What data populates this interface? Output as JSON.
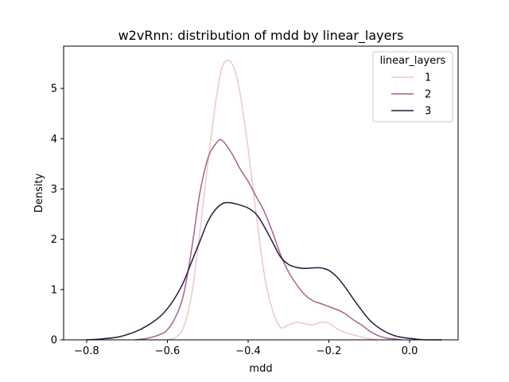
{
  "chart_data": {
    "type": "line",
    "title": "w2vRnn: distribution of mdd by linear_layers",
    "xlabel": "mdd",
    "ylabel": "Density",
    "xlim": [
      -0.857,
      0.12
    ],
    "ylim": [
      0,
      5.84
    ],
    "xticks": [
      -0.8,
      -0.6,
      -0.4,
      -0.2,
      0.0
    ],
    "xtick_labels": [
      "−0.8",
      "−0.6",
      "−0.4",
      "−0.2",
      "0.0"
    ],
    "yticks": [
      0,
      1,
      2,
      3,
      4,
      5
    ],
    "ytick_labels": [
      "0",
      "1",
      "2",
      "3",
      "4",
      "5"
    ],
    "legend": {
      "title": "linear_layers",
      "placement": "top-right"
    },
    "grid": false,
    "series": [
      {
        "name": "1",
        "color": "#ebc9c4",
        "x": [
          -0.6,
          -0.58,
          -0.56,
          -0.54,
          -0.52,
          -0.5,
          -0.48,
          -0.465,
          -0.45,
          -0.435,
          -0.42,
          -0.4,
          -0.38,
          -0.36,
          -0.34,
          -0.32,
          -0.3,
          -0.28,
          -0.26,
          -0.24,
          -0.22,
          -0.2,
          -0.18,
          -0.16,
          -0.14,
          -0.12,
          -0.1,
          -0.08
        ],
        "y": [
          0.0,
          0.05,
          0.25,
          0.9,
          2.1,
          3.5,
          4.75,
          5.4,
          5.56,
          5.4,
          4.9,
          3.8,
          2.5,
          1.3,
          0.6,
          0.25,
          0.3,
          0.35,
          0.32,
          0.3,
          0.35,
          0.33,
          0.22,
          0.15,
          0.1,
          0.06,
          0.02,
          0.0
        ]
      },
      {
        "name": "2",
        "color": "#a8608a",
        "x": [
          -0.68,
          -0.65,
          -0.62,
          -0.6,
          -0.58,
          -0.56,
          -0.54,
          -0.52,
          -0.5,
          -0.48,
          -0.465,
          -0.44,
          -0.42,
          -0.4,
          -0.38,
          -0.36,
          -0.34,
          -0.32,
          -0.3,
          -0.28,
          -0.26,
          -0.24,
          -0.22,
          -0.2,
          -0.18,
          -0.16,
          -0.14,
          -0.12,
          -0.1,
          -0.08,
          -0.06,
          -0.04,
          -0.02
        ],
        "y": [
          0.0,
          0.03,
          0.1,
          0.2,
          0.45,
          0.9,
          1.8,
          2.9,
          3.6,
          3.9,
          3.97,
          3.7,
          3.4,
          3.15,
          2.85,
          2.55,
          2.15,
          1.7,
          1.35,
          1.1,
          0.9,
          0.78,
          0.72,
          0.66,
          0.6,
          0.52,
          0.4,
          0.3,
          0.18,
          0.09,
          0.04,
          0.02,
          0.0
        ]
      },
      {
        "name": "3",
        "color": "#241a3e",
        "x": [
          -0.8,
          -0.76,
          -0.72,
          -0.68,
          -0.65,
          -0.62,
          -0.6,
          -0.58,
          -0.56,
          -0.54,
          -0.52,
          -0.5,
          -0.48,
          -0.46,
          -0.44,
          -0.42,
          -0.4,
          -0.38,
          -0.36,
          -0.34,
          -0.32,
          -0.3,
          -0.28,
          -0.26,
          -0.24,
          -0.22,
          -0.2,
          -0.18,
          -0.16,
          -0.14,
          -0.12,
          -0.1,
          -0.08,
          -0.06,
          -0.04,
          -0.02,
          0.0,
          0.02,
          0.04,
          0.06,
          0.08
        ],
        "y": [
          0.0,
          0.02,
          0.06,
          0.16,
          0.28,
          0.45,
          0.62,
          0.85,
          1.15,
          1.55,
          1.95,
          2.35,
          2.6,
          2.72,
          2.72,
          2.68,
          2.62,
          2.5,
          2.25,
          1.95,
          1.65,
          1.5,
          1.44,
          1.42,
          1.43,
          1.43,
          1.38,
          1.25,
          1.05,
          0.82,
          0.6,
          0.4,
          0.26,
          0.16,
          0.09,
          0.05,
          0.03,
          0.01,
          0.0,
          0.0,
          0.0
        ]
      }
    ]
  }
}
